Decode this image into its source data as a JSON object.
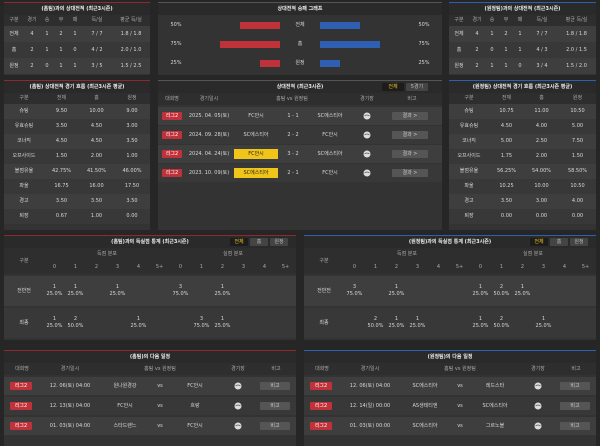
{
  "h2h_left": {
    "title": "(홈팀)과의 상대전적 (최근3시즌)",
    "columns": [
      "구분",
      "경기",
      "승",
      "무",
      "패",
      "득/실",
      "평균 득/실"
    ],
    "rows": [
      [
        "전체",
        "4",
        "1",
        "2",
        "1",
        "7 / 7",
        "1.8 / 1.8"
      ],
      [
        "홈",
        "2",
        "1",
        "1",
        "0",
        "4 / 2",
        "2.0 / 1.0"
      ],
      [
        "원정",
        "2",
        "0",
        "1",
        "1",
        "3 / 5",
        "1.5 / 2.5"
      ]
    ]
  },
  "graph": {
    "title": "상대전적 승패 그래프",
    "rows": [
      {
        "label": "전체",
        "home": 50,
        "home_label": "50%",
        "away": 50,
        "away_label": "50%"
      },
      {
        "label": "홈",
        "home": 75,
        "home_label": "75%",
        "away": 75,
        "away_label": "75%"
      },
      {
        "label": "원정",
        "home": 25,
        "home_label": "25%",
        "away": 25,
        "away_label": "25%"
      }
    ]
  },
  "h2h_right": {
    "title": "(원정팀)과의 상대전적 (최근3시즌)",
    "columns": [
      "구분",
      "경기",
      "승",
      "무",
      "패",
      "득/실",
      "평균 득/실"
    ],
    "rows": [
      [
        "전체",
        "4",
        "1",
        "2",
        "1",
        "7 / 7",
        "1.8 / 1.8"
      ],
      [
        "홈",
        "2",
        "0",
        "1",
        "1",
        "4 / 3",
        "2.0 / 1.5"
      ],
      [
        "원정",
        "2",
        "1",
        "1",
        "0",
        "3 / 4",
        "1.5 / 2.0"
      ]
    ]
  },
  "flow_left": {
    "title": "(홈팀) 상대전적 경기 흐름 (최근3시즌 평균)",
    "columns": [
      "구분",
      "전체",
      "홈",
      "원정"
    ],
    "rows": [
      [
        "슈팅",
        "9.50",
        "10.00",
        "9.00"
      ],
      [
        "유효슈팅",
        "3.50",
        "4.50",
        "3.00"
      ],
      [
        "코너킥",
        "4.50",
        "4.50",
        "3.50"
      ],
      [
        "오프사이드",
        "1.50",
        "2.00",
        "1.00"
      ],
      [
        "볼점유율",
        "42.75%",
        "41.50%",
        "46.00%"
      ],
      [
        "파울",
        "16.75",
        "16.00",
        "17.50"
      ],
      [
        "경고",
        "3.50",
        "3.50",
        "3.50"
      ],
      [
        "퇴장",
        "0.67",
        "1.00",
        "0.00"
      ]
    ]
  },
  "flow_right": {
    "title": "(원정팀) 상대전적 경기 흐름 (최근3시즌 평균)",
    "columns": [
      "구분",
      "전체",
      "홈",
      "원정"
    ],
    "rows": [
      [
        "슈팅",
        "10.75",
        "11.00",
        "10.50"
      ],
      [
        "유효슈팅",
        "4.50",
        "4.00",
        "5.00"
      ],
      [
        "코너킥",
        "5.00",
        "2.50",
        "7.50"
      ],
      [
        "오프사이드",
        "1.75",
        "2.00",
        "1.50"
      ],
      [
        "볼점유율",
        "56.25%",
        "54.00%",
        "58.50%"
      ],
      [
        "파울",
        "10.25",
        "10.00",
        "10.50"
      ],
      [
        "경고",
        "3.50",
        "3.00",
        "4.00"
      ],
      [
        "퇴장",
        "0.00",
        "0.00",
        "0.00"
      ]
    ]
  },
  "recent": {
    "title": "상대전적 (최근3시즌)",
    "tabs": [
      "전체",
      "5경기"
    ],
    "columns": [
      "대회명",
      "경기일시",
      "홈팀 vs 원정팀",
      "경기장",
      "비고"
    ],
    "rows": [
      {
        "comp": "리그2",
        "date": "2025. 04. 05(토)",
        "home": "FC안시",
        "score": "1 - 1",
        "away": "SC에스티아",
        "winner": "none",
        "note": "결과 >"
      },
      {
        "comp": "리그2",
        "date": "2024. 09. 28(토)",
        "home": "SC에스티아",
        "score": "2 - 2",
        "away": "FC안시",
        "winner": "none",
        "note": "결과 >"
      },
      {
        "comp": "리그2",
        "date": "2024. 04. 24(토)",
        "home": "FC안시",
        "score": "3 - 2",
        "away": "SC에스티아",
        "winner": "home",
        "note": "결과 >"
      },
      {
        "comp": "리그2",
        "date": "2023. 10. 09(토)",
        "home": "SC에스티아",
        "score": "2 - 1",
        "away": "FC안시",
        "winner": "home",
        "note": "결과 >"
      }
    ]
  },
  "goals_left": {
    "title": "(홈팀)과의 득실점 통계 (최근3시즌)",
    "tabs": [
      "전체",
      "홈",
      "원정"
    ],
    "label": "구분",
    "groups": [
      "득점 분포",
      "실점 분포"
    ],
    "bins": [
      "0",
      "1",
      "2",
      "3",
      "4",
      "5+"
    ],
    "rows": [
      {
        "label": "전반전",
        "scored": [
          [
            "1",
            "25.0%"
          ],
          [
            "1",
            "25.0%"
          ],
          null,
          [
            "1",
            "25.0%"
          ],
          null,
          null
        ],
        "conceded": [
          [
            "3",
            "75.0%"
          ],
          null,
          [
            "1",
            "25.0%"
          ],
          null,
          null,
          null
        ]
      },
      {
        "label": "최종",
        "scored": [
          [
            "1",
            "25.0%"
          ],
          [
            "2",
            "50.0%"
          ],
          null,
          null,
          [
            "1",
            "25.0%"
          ],
          null
        ],
        "conceded": [
          null,
          [
            "3",
            "75.0%"
          ],
          [
            "1",
            "25.0%"
          ],
          null,
          null,
          null
        ]
      }
    ]
  },
  "goals_right": {
    "title": "(원정팀)과의 득실점 통계 (최근3시즌)",
    "tabs": [
      "전체",
      "홈",
      "원정"
    ],
    "label": "구분",
    "groups": [
      "득점 분포",
      "실점 분포"
    ],
    "bins": [
      "0",
      "1",
      "2",
      "3",
      "4",
      "5+"
    ],
    "rows": [
      {
        "label": "전반전",
        "scored": [
          [
            "3",
            "75.0%"
          ],
          null,
          [
            "1",
            "25.0%"
          ],
          null,
          null,
          null
        ],
        "conceded": [
          [
            "1",
            "25.0%"
          ],
          [
            "2",
            "50.0%"
          ],
          [
            "1",
            "25.0%"
          ],
          null,
          null,
          null
        ]
      },
      {
        "label": "최종",
        "scored": [
          null,
          [
            "2",
            "50.0%"
          ],
          [
            "1",
            "25.0%"
          ],
          [
            "1",
            "25.0%"
          ],
          null,
          null
        ],
        "conceded": [
          [
            "1",
            "25.0%"
          ],
          [
            "2",
            "50.0%"
          ],
          null,
          [
            "1",
            "25.0%"
          ],
          null,
          null
        ]
      }
    ]
  },
  "schedule_left": {
    "title": "(홈팀)의 다음 일정",
    "vs": "vs",
    "columns": [
      "대회명",
      "경기일시",
      "홈팀 vs 원정팀",
      "경기장",
      "비고"
    ],
    "rows": [
      {
        "comp": "리그2",
        "date": "12. 06(토) 04:00",
        "home": "원나원경강",
        "away": "FC안시",
        "note": "비고"
      },
      {
        "comp": "리그2",
        "date": "12. 13(토) 04:00",
        "home": "FC안시",
        "away": "흐랑",
        "note": "비고"
      },
      {
        "comp": "리그2",
        "date": "01. 03(토) 04:00",
        "home": "스타드렌느",
        "away": "FC안시",
        "note": "비고"
      }
    ]
  },
  "schedule_right": {
    "title": "(원정팀)의 다음 일정",
    "vs": "vs",
    "columns": [
      "대회명",
      "경기일시",
      "홈팀 vs 원정팀",
      "경기장",
      "비고"
    ],
    "rows": [
      {
        "comp": "리그2",
        "date": "12. 06(토) 04:00",
        "home": "SC에스티아",
        "away": "레드스타",
        "note": "비고"
      },
      {
        "comp": "리그2",
        "date": "12. 14(일) 00:00",
        "home": "AS생테티엔",
        "away": "SC에스티아",
        "note": "비고"
      },
      {
        "comp": "리그2",
        "date": "01. 03(토) 00:00",
        "home": "SC에스티아",
        "away": "그르노블",
        "note": "비고"
      }
    ]
  }
}
